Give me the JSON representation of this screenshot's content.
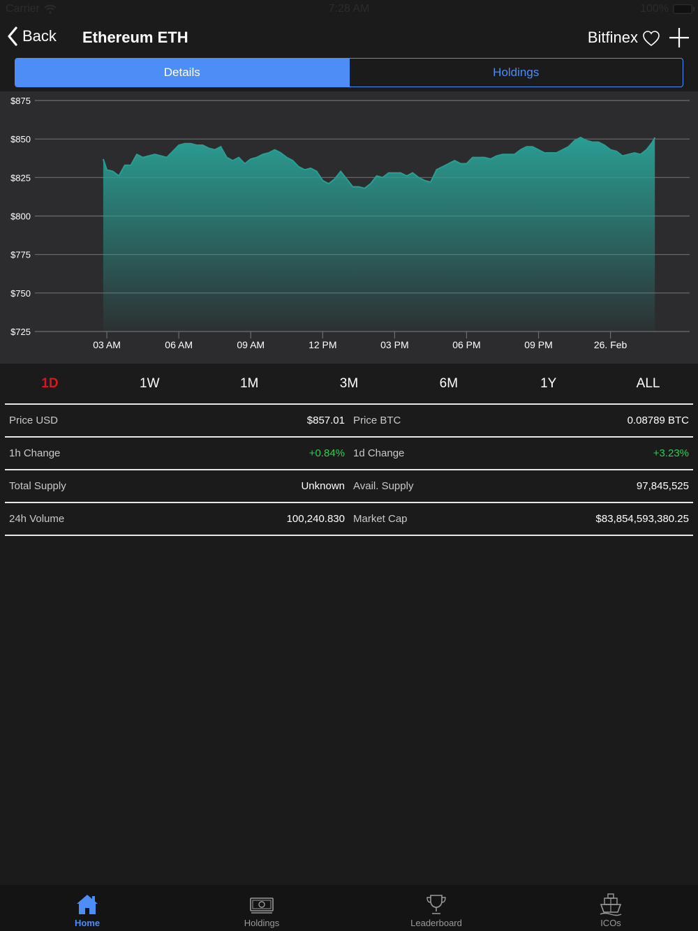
{
  "status_bar": {
    "carrier": "Carrier",
    "time": "7:28 AM",
    "battery": "100%"
  },
  "nav": {
    "back_label": "Back",
    "title": "Ethereum ETH",
    "exchange": "Bitfinex"
  },
  "segments": [
    {
      "label": "Details",
      "active": true
    },
    {
      "label": "Holdings",
      "active": false
    }
  ],
  "chart_data": {
    "type": "area",
    "x_tick_labels": [
      "03 AM",
      "06 AM",
      "09 AM",
      "12 PM",
      "03 PM",
      "06 PM",
      "09 PM",
      "26. Feb"
    ],
    "y_tick_labels": [
      "$875",
      "$850",
      "$825",
      "$800",
      "$775",
      "$750",
      "$725"
    ],
    "y_ticks": [
      875,
      850,
      825,
      800,
      775,
      750,
      725
    ],
    "ylim": [
      725,
      875
    ],
    "grid": true,
    "series": [
      {
        "color": "#2a9d93",
        "x_hours": [
          2.85,
          3.0,
          3.25,
          3.5,
          3.75,
          4.0,
          4.25,
          4.5,
          4.75,
          5.0,
          5.25,
          5.5,
          5.75,
          6.0,
          6.25,
          6.5,
          6.75,
          7.0,
          7.25,
          7.5,
          7.75,
          8.0,
          8.25,
          8.5,
          8.75,
          9.0,
          9.25,
          9.5,
          9.75,
          10.0,
          10.25,
          10.5,
          10.75,
          11.0,
          11.25,
          11.5,
          11.75,
          12.0,
          12.25,
          12.5,
          12.75,
          13.0,
          13.25,
          13.5,
          13.75,
          14.0,
          14.25,
          14.5,
          14.75,
          15.0,
          15.25,
          15.5,
          15.75,
          16.0,
          16.25,
          16.5,
          16.75,
          17.0,
          17.25,
          17.5,
          17.75,
          18.0,
          18.25,
          18.5,
          18.75,
          19.0,
          19.25,
          19.5,
          19.75,
          20.0,
          20.25,
          20.5,
          20.75,
          21.0,
          21.25,
          21.5,
          21.75,
          22.0,
          22.25,
          22.5,
          22.75,
          23.0,
          23.25,
          23.5,
          23.75,
          24.0,
          24.25,
          24.5,
          24.75,
          25.0,
          25.25,
          25.5,
          25.75,
          25.85
        ],
        "values": [
          837,
          830,
          829,
          826,
          833,
          833,
          840,
          838,
          839,
          840,
          839,
          838,
          842,
          846,
          847,
          847,
          846,
          846,
          844,
          843,
          845,
          838,
          836,
          838,
          834,
          837,
          838,
          840,
          841,
          843,
          841,
          838,
          836,
          832,
          830,
          831,
          829,
          823,
          821,
          824,
          829,
          824,
          819,
          819,
          818,
          821,
          826,
          825,
          828,
          828,
          828,
          826,
          828,
          825,
          823,
          822,
          830,
          832,
          834,
          836,
          834,
          834,
          838,
          838,
          838,
          837,
          839,
          840,
          840,
          840,
          843,
          845,
          845,
          843,
          841,
          841,
          841,
          843,
          845,
          849,
          851,
          849,
          848,
          848,
          846,
          843,
          842,
          839,
          840,
          841,
          840,
          843,
          848,
          851
        ]
      }
    ]
  },
  "ranges": [
    {
      "label": "1D",
      "active": true
    },
    {
      "label": "1W",
      "active": false
    },
    {
      "label": "1M",
      "active": false
    },
    {
      "label": "3M",
      "active": false
    },
    {
      "label": "6M",
      "active": false
    },
    {
      "label": "1Y",
      "active": false
    },
    {
      "label": "ALL",
      "active": false
    }
  ],
  "stats": {
    "price_usd": {
      "label": "Price USD",
      "value": "$857.01"
    },
    "price_btc": {
      "label": "Price BTC",
      "value": "0.08789 BTC"
    },
    "change_1h": {
      "label": "1h Change",
      "value": "+0.84%"
    },
    "change_1d": {
      "label": "1d Change",
      "value": "+3.23%"
    },
    "total_supply": {
      "label": "Total Supply",
      "value": "Unknown"
    },
    "avail_supply": {
      "label": "Avail. Supply",
      "value": "97,845,525"
    },
    "volume_24h": {
      "label": "24h Volume",
      "value": "100,240.830"
    },
    "market_cap": {
      "label": "Market Cap",
      "value": "$83,854,593,380.25"
    }
  },
  "tabs": [
    {
      "label": "Home",
      "icon": "home-icon",
      "active": true
    },
    {
      "label": "Holdings",
      "icon": "money-icon",
      "active": false
    },
    {
      "label": "Leaderboard",
      "icon": "trophy-icon",
      "active": false
    },
    {
      "label": "ICOs",
      "icon": "ship-icon",
      "active": false
    }
  ],
  "colors": {
    "accent": "#4c8df6",
    "active_range": "#e0141e",
    "positive": "#2ecc52",
    "background": "#1b1b1c",
    "chart_bg": "#2c2c2e",
    "area": "#2a9d93"
  }
}
